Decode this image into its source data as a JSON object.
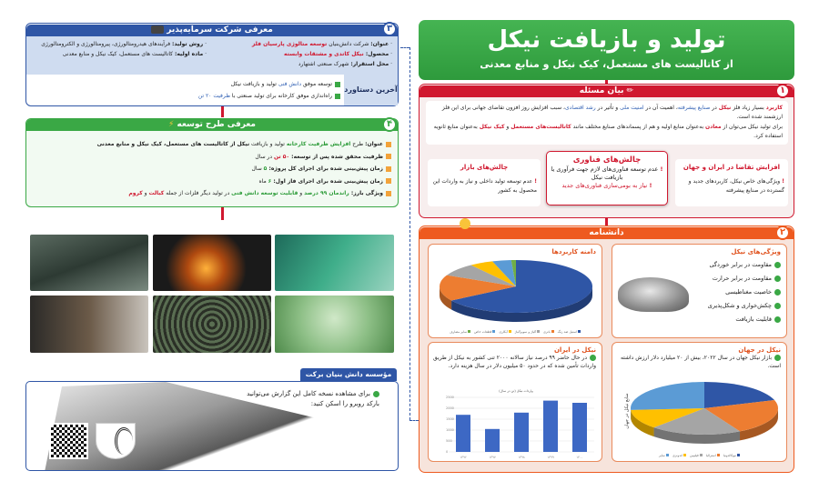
{
  "title": {
    "main": "تولید و بازیافت نیکل",
    "sub": "از کاتالیست های مستعمل، کیک نیکل و منابع معدنی"
  },
  "colors": {
    "green": "#3aa845",
    "red": "#d0182f",
    "orange": "#ee5a1f",
    "blue": "#2f56a6"
  },
  "s1": {
    "num": "۱",
    "header": "بیان مسئله",
    "icon": "pencil-icon",
    "p1": {
      "a": "کاربرد",
      "b": " بسیار زیاد فلز ",
      "c": "نیکل",
      "d": " در ",
      "e": "صنایع پیشرفته",
      "f": "، اهمیت آن در ",
      "g": "امنیت ملی",
      "h": " و تأثیر در ",
      "i": "رشد اقتصادی",
      "j": "، سبب افزایش روز افزون تقاضای جهانی برای این فلز ارزشمند شده است."
    },
    "p2": {
      "a": "برای تولید نیکل می‌توان از ",
      "b": "معادن",
      "c": " به‌عنوان منابع اولیه و هم از پسماندهای صنایع مختلف مانند ",
      "d": "کاتالیست‌های مستعمل",
      "e": " و ",
      "f": "کیک نیکل",
      "g": " به‌عنوان منابع ثانویه استفاده کرد."
    },
    "demand": {
      "title": "افزایش تقاضا در ایران و جهان",
      "text": "ویژگی‌های خاص نیکل، کاربردهای جدید و گسترده در صنایع پیشرفته"
    },
    "tech": {
      "title": "چالش‌های فناوری",
      "item1": "عدم توسعه فناوری‌های لازم جهت فرآوری یا بازیافت نیکل",
      "item2": "نیاز به بومی‌سازی فناوری‌های جدید"
    },
    "market": {
      "title": "چالش‌های بازار",
      "text": "عدم توسعه تولید داخلی و نیاز به واردات این محصول به کشور"
    }
  },
  "s2": {
    "num": "۲",
    "header": "دانشنامه",
    "icon": "lightbulb-icon",
    "features": {
      "title": "ویژگی‌های نیکل",
      "items": [
        "مقاومت در برابر خوردگی",
        "مقاومت در برابر حرارت",
        "خاصیت مغناطیسی",
        "چکش‌خواری و شکل‌پذیری",
        "قابلیت بازیافت"
      ]
    },
    "world": {
      "title": "نیکل در جهان",
      "text": "بازار نیکل جهان در سال ۲۰۲۲، بیش از ۲۰ میلیارد دلار ارزش داشته است."
    },
    "iran": {
      "title": "نیکل در ایران",
      "text": "در حال حاضر ۹۹ درصد نیاز سالانه ۲۰۰۰ تنی کشور به نیکل از طریق واردات تأمین شده که در حدود ۵۰ میلیون دلار در سال هزینه دارد."
    }
  },
  "s3": {
    "num": "۳",
    "header": "معرفی شرکت سرمایه‌پذیر",
    "icon": "briefcase-icon",
    "name_l": "عنوان:",
    "name_a": " شرکت دانش‌بنیان ",
    "name_b": "توسعه متالوژی پارسیان فلز",
    "product_l": "محصول:",
    "product_v": " نیکل کاتدی و مشتقات وابسته",
    "loc_l": "محل استقرار:",
    "loc_v": " شهرک صنعتی اشتهارد",
    "method_l": "روش تولید:",
    "method_v": " فرآیندهای هیدرومتالورژی، پیرومتالورژی و الکترومتالورژی",
    "raw_l": "ماده اولیه:",
    "raw_v": " کاتالیست های مستعمل، کیک نیکل و منابع معدنی",
    "ach_title": "آخرین دستاورد",
    "ach1": {
      "a": "توسعه موفق ",
      "b": "دانش فنی",
      "c": " تولید و بازیافت نیکل"
    },
    "ach2": {
      "a": "راه‌اندازی موفق کارخانه برای تولید صنعتی با ",
      "b": "ظرفیت ۲۰ تن"
    }
  },
  "s4": {
    "num": "۴",
    "header": "معرفی طرح توسعه",
    "icon": "lightning-icon",
    "r1": {
      "l": "عنوان:",
      "a": " طرح ",
      "b": "افزایش ظرفیت کارخانه",
      "c": " تولید و بازیافت ",
      "d": "نیکل از کاتالیست های مستعمل، کیک نیکل و منابع معدنی"
    },
    "r2": {
      "l": "ظرفیت محقق شده پس از توسعه:",
      "v": " ۵۰ تن",
      "s": " در سال"
    },
    "r3": {
      "l": "زمان پیش‌بینی شده برای اجرای کل پروژه:",
      "v": " ۵",
      "s": " سال"
    },
    "r4": {
      "l": "زمان پیش‌بینی شده برای اجرای فاز اول:",
      "v": " ۶",
      "s": " ماه"
    },
    "r5": {
      "l": "ویژگی بارز:",
      "a": " راندمان ۹۹ درصد",
      "b": " و ",
      "c": "قابلیت توسعه دانش فنی",
      "d": " در تولید دیگر فلزات از جمله ",
      "e": "کبالت",
      "f": " و ",
      "g": "کروم"
    }
  },
  "s5": {
    "header": "مؤسسه دانش بنیان برکت",
    "text": "برای مشاهده نسخه کامل این گزارش می‌توانید بارکد روبرو را اسکن کنید:"
  },
  "chart_data": [
    {
      "type": "pie",
      "title": "دامنه کاربردها",
      "categories": [
        "استیل ضد زنگ",
        "باتری",
        "آلیاژ و سوپرآلیاژ",
        "آبکاری",
        "قطعات خاص",
        "سایر مصارف"
      ],
      "values": [
        66,
        16,
        8,
        5,
        4,
        1
      ],
      "colors": [
        "#2f56a6",
        "#ed7d31",
        "#a5a5a5",
        "#ffc000",
        "#5b9bd5",
        "#70ad47"
      ],
      "legend": "bottom"
    },
    {
      "type": "pie",
      "title": "منابع نیکل در جهان",
      "categories": [
        "نیوکالدونیا",
        "استرالیا",
        "فیلیپین",
        "اندونزی",
        "سایر"
      ],
      "values": [
        20,
        22,
        20,
        12,
        26
      ],
      "colors": [
        "#2f56a6",
        "#ed7d31",
        "#a5a5a5",
        "#ffc000",
        "#5b9bd5"
      ],
      "legend": "bottom"
    },
    {
      "type": "bar",
      "title": "واردات نیکل (تن در سال)",
      "categories": [
        "۱۳۹۶",
        "۱۳۹۷",
        "۱۳۹۸",
        "۱۳۹۹",
        "۱۴۰۰"
      ],
      "values": [
        1700,
        1050,
        1800,
        2350,
        2250
      ],
      "ylim": [
        0,
        2500
      ],
      "yticks": [
        "0",
        "500",
        "1000",
        "1500",
        "2000",
        "2500"
      ],
      "grid": true
    }
  ]
}
